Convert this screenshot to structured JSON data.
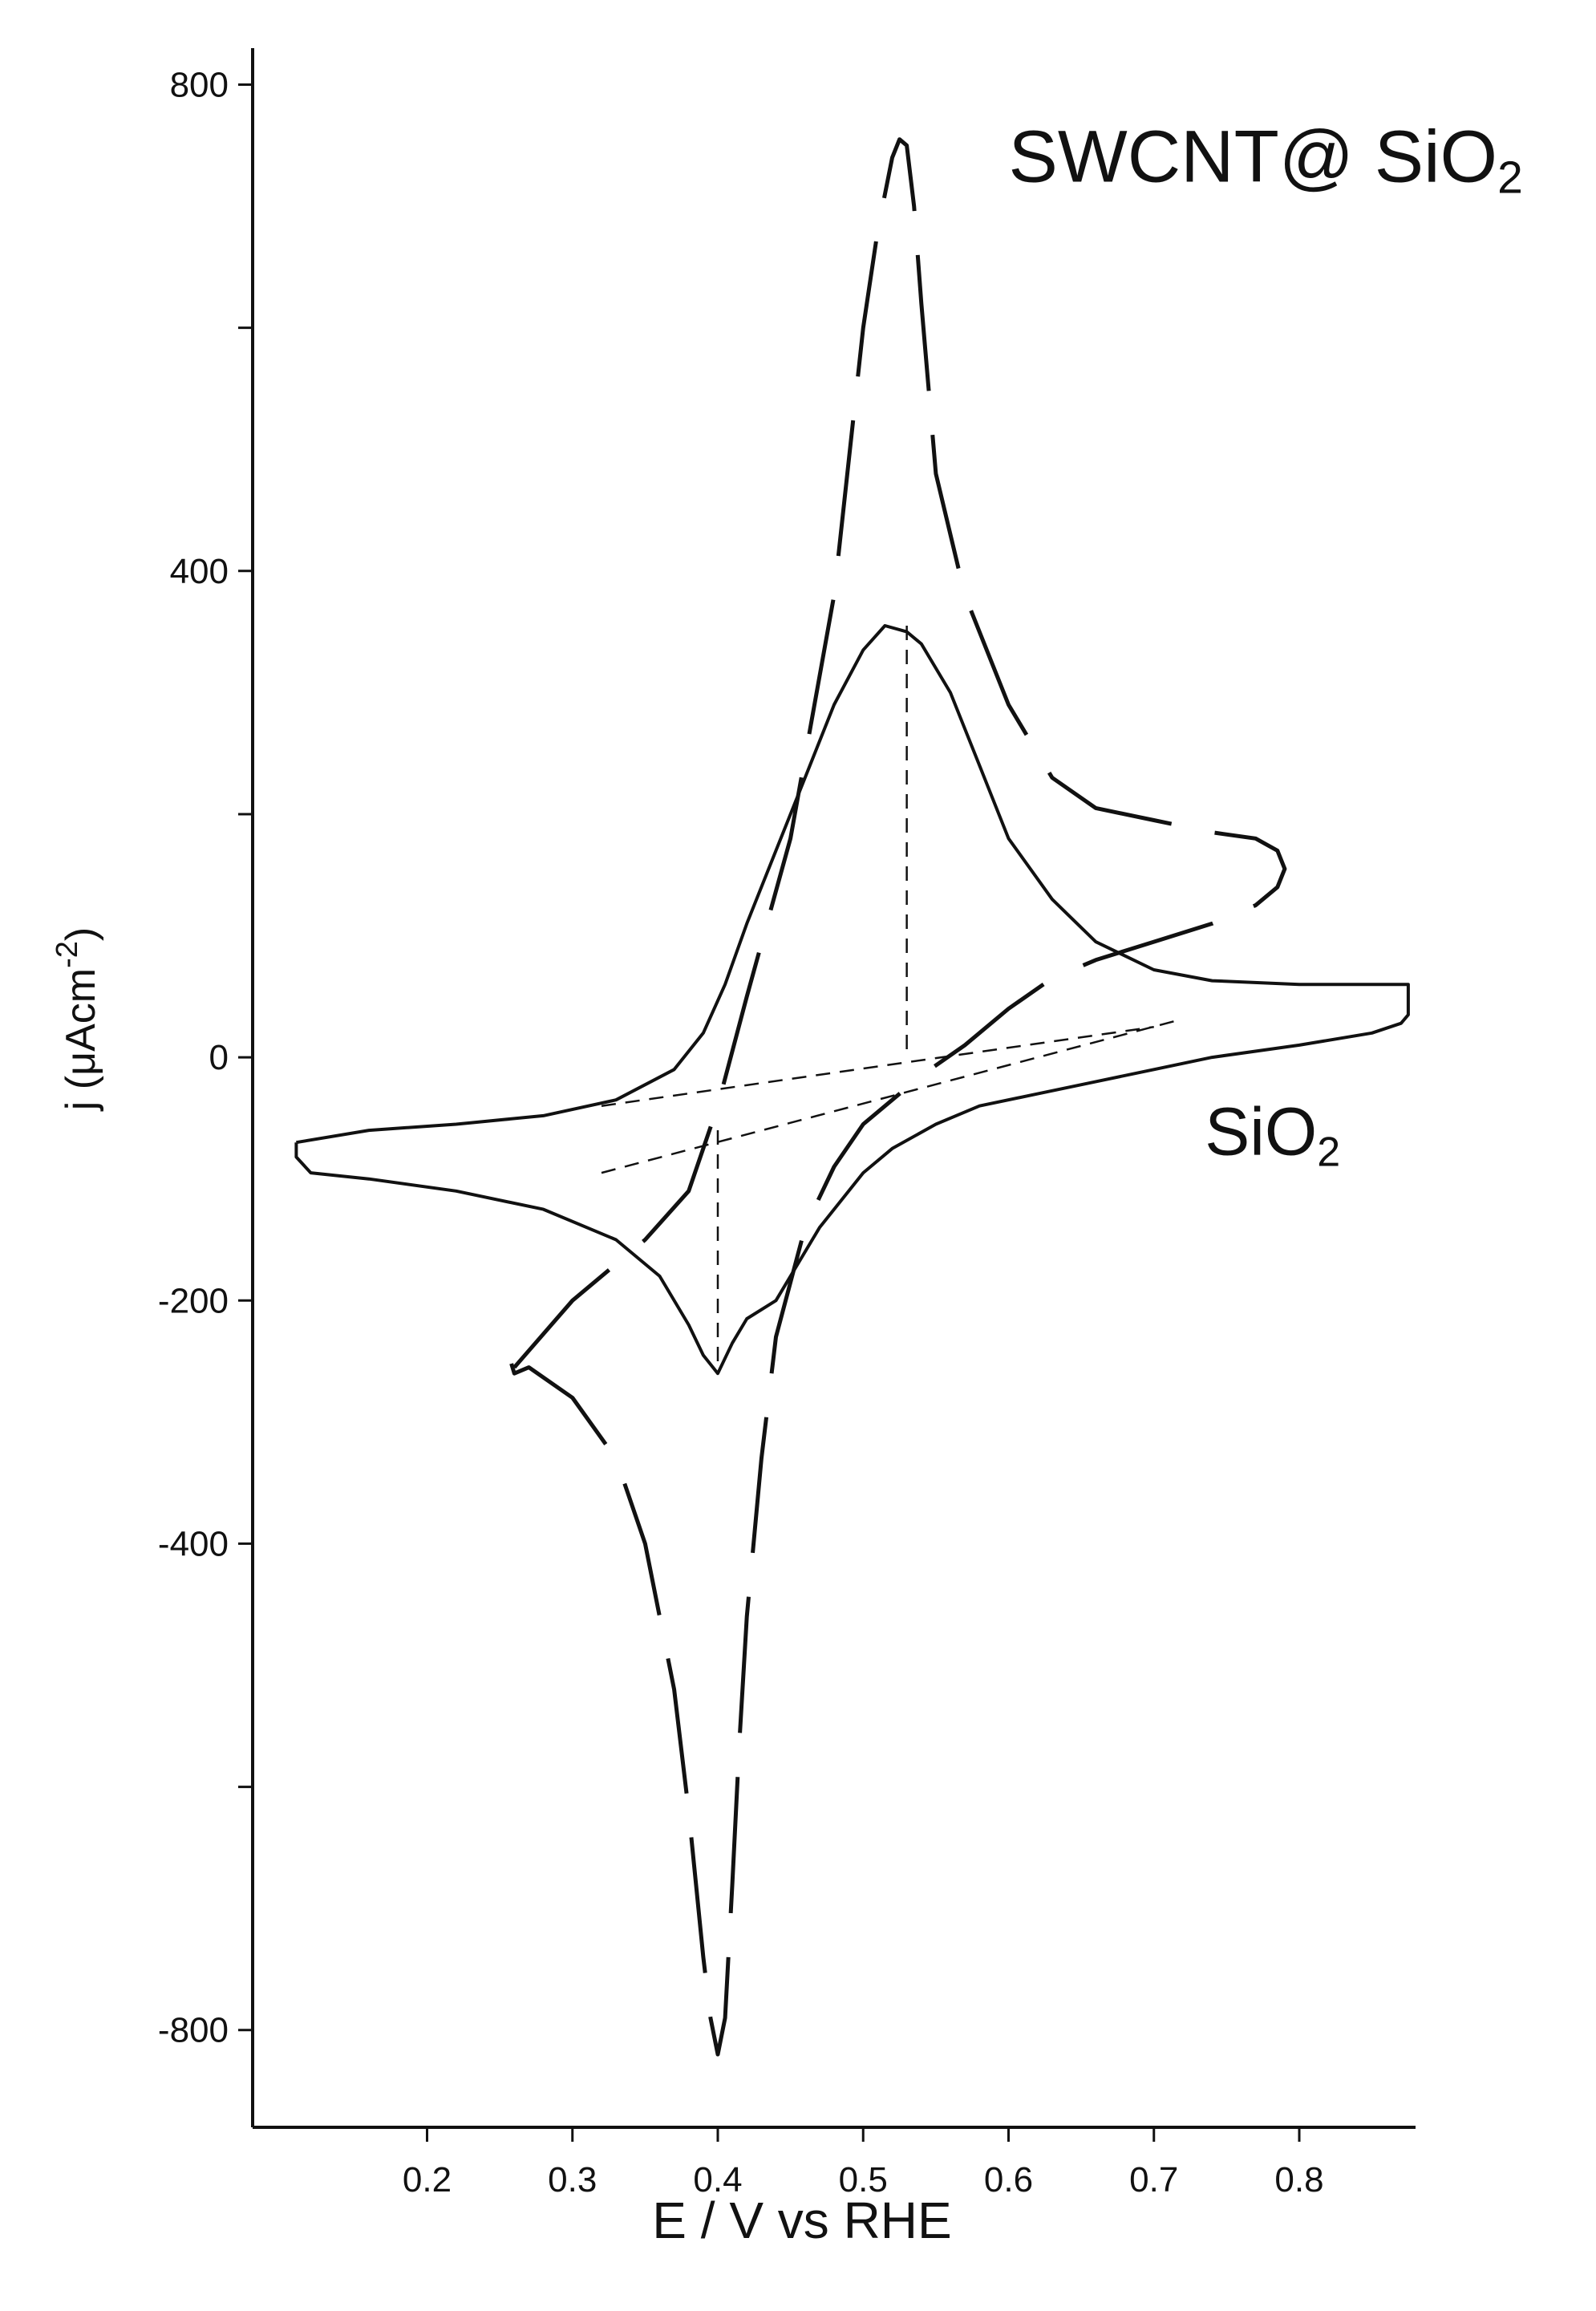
{
  "chart_data": {
    "type": "line",
    "title": "",
    "xlabel": "E / V vs RHE",
    "ylabel": "j (μAcm",
    "ylabel_sup": "-2",
    "ylabel_close": ")",
    "xlim": [
      0.08,
      0.88
    ],
    "ylim": [
      -880,
      830
    ],
    "x_ticks": [
      0.2,
      0.3,
      0.4,
      0.5,
      0.6,
      0.7,
      0.8
    ],
    "y_tick_positions": [
      800,
      600,
      400,
      200,
      0,
      -200,
      -400,
      -600,
      -800
    ],
    "y_tick_labels": [
      {
        "value": 800,
        "label": "800"
      },
      {
        "value": 400,
        "label": "400"
      },
      {
        "value": 0,
        "label": "0"
      },
      {
        "value": -200,
        "label": "-200"
      },
      {
        "value": -400,
        "label": "-400"
      },
      {
        "value": -800,
        "label": "-800"
      }
    ],
    "grid": false,
    "annotations": [
      {
        "text": "SWCNT@ SiO",
        "sub": "2",
        "x": 0.6,
        "y": 720,
        "size": "large"
      },
      {
        "text": "SiO",
        "sub": "2",
        "x": 0.735,
        "y": -80,
        "size": "medium"
      }
    ],
    "series": [
      {
        "style": "dashed-segments",
        "x": [
          0.26,
          0.3,
          0.35,
          0.38,
          0.4,
          0.42,
          0.45,
          0.48,
          0.5,
          0.51,
          0.52,
          0.525,
          0.53,
          0.535,
          0.54,
          0.55,
          0.57,
          0.6,
          0.63,
          0.66,
          0.7,
          0.74,
          0.77,
          0.785,
          0.79,
          0.785,
          0.77,
          0.74,
          0.7,
          0.66,
          0.63,
          0.6,
          0.57,
          0.54,
          0.52,
          0.5,
          0.48,
          0.46,
          0.44,
          0.43,
          0.42,
          0.415,
          0.41,
          0.405,
          0.4,
          0.395,
          0.39,
          0.385,
          0.38,
          0.37,
          0.35,
          0.33,
          0.3,
          0.27,
          0.26,
          0.255,
          0.26
        ],
        "y": [
          -255,
          -200,
          -150,
          -110,
          -40,
          50,
          180,
          380,
          600,
          680,
          740,
          755,
          750,
          700,
          620,
          480,
          380,
          290,
          230,
          205,
          195,
          185,
          180,
          170,
          155,
          140,
          125,
          110,
          95,
          80,
          65,
          40,
          10,
          -15,
          -35,
          -55,
          -90,
          -140,
          -230,
          -330,
          -460,
          -560,
          -680,
          -790,
          -820,
          -790,
          -740,
          -680,
          -620,
          -520,
          -400,
          -330,
          -280,
          -255,
          -260,
          -240,
          -220
        ]
      },
      {
        "style": "solid",
        "x": [
          0.11,
          0.16,
          0.22,
          0.28,
          0.33,
          0.37,
          0.39,
          0.405,
          0.42,
          0.44,
          0.46,
          0.48,
          0.5,
          0.515,
          0.53,
          0.54,
          0.56,
          0.58,
          0.6,
          0.63,
          0.66,
          0.7,
          0.74,
          0.8,
          0.85,
          0.875,
          0.875,
          0.87,
          0.85,
          0.8,
          0.74,
          0.7,
          0.66,
          0.62,
          0.58,
          0.55,
          0.52,
          0.5,
          0.47,
          0.44,
          0.42,
          0.41,
          0.4,
          0.39,
          0.38,
          0.36,
          0.33,
          0.28,
          0.22,
          0.16,
          0.12,
          0.11,
          0.11
        ],
        "y": [
          -70,
          -60,
          -55,
          -48,
          -35,
          -10,
          20,
          60,
          110,
          170,
          230,
          290,
          335,
          355,
          350,
          340,
          300,
          240,
          180,
          130,
          95,
          72,
          63,
          60,
          60,
          60,
          35,
          28,
          20,
          10,
          0,
          -10,
          -20,
          -30,
          -40,
          -55,
          -75,
          -95,
          -140,
          -200,
          -215,
          -235,
          -260,
          -245,
          -220,
          -180,
          -150,
          -125,
          -110,
          -100,
          -95,
          -82,
          -70
        ]
      }
    ],
    "reference_lines": [
      {
        "style": "dashed",
        "x": [
          0.32,
          0.715
        ],
        "y": [
          -95,
          30
        ]
      },
      {
        "style": "dashed",
        "x": [
          0.32,
          0.7
        ],
        "y": [
          -40,
          25
        ]
      },
      {
        "style": "dashed",
        "x": [
          0.53,
          0.53
        ],
        "y": [
          355,
          0
        ]
      },
      {
        "style": "dashed",
        "x": [
          0.4,
          0.4
        ],
        "y": [
          -60,
          -260
        ]
      }
    ]
  }
}
